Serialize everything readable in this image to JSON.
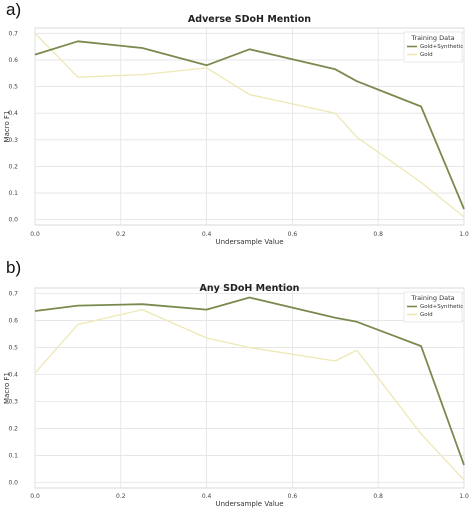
{
  "panels": [
    {
      "label": "a)"
    },
    {
      "label": "b)"
    }
  ],
  "chart_data": [
    {
      "type": "line",
      "title": "Adverse SDoH Mention",
      "xlabel": "Undersample Value",
      "ylabel": "Macro F1",
      "xlim": [
        0.0,
        1.0
      ],
      "ylim": [
        -0.02,
        0.72
      ],
      "xticks": [
        "0.0",
        "0.2",
        "0.4",
        "0.6",
        "0.8",
        "1.0"
      ],
      "yticks": [
        "0.0",
        "0.1",
        "0.2",
        "0.3",
        "0.4",
        "0.5",
        "0.6",
        "0.7"
      ],
      "grid": true,
      "legend": {
        "title": "Training Data",
        "placement": "top-right"
      },
      "x": [
        0.0,
        0.1,
        0.25,
        0.4,
        0.5,
        0.7,
        0.75,
        0.9,
        1.0
      ],
      "series": [
        {
          "name": "Gold+Synthetic",
          "color": "#7a8a4f",
          "values": [
            0.62,
            0.67,
            0.645,
            0.58,
            0.64,
            0.565,
            0.52,
            0.425,
            0.04
          ]
        },
        {
          "name": "Gold",
          "color": "#eee8b4",
          "values": [
            0.7,
            0.535,
            0.545,
            0.57,
            0.47,
            0.4,
            0.31,
            0.14,
            0.01
          ]
        }
      ]
    },
    {
      "type": "line",
      "title": "Any SDoH Mention",
      "xlabel": "Undersample Value",
      "ylabel": "Macro F1",
      "xlim": [
        0.0,
        1.0
      ],
      "ylim": [
        -0.02,
        0.72
      ],
      "xticks": [
        "0.0",
        "0.2",
        "0.4",
        "0.6",
        "0.8",
        "1.0"
      ],
      "yticks": [
        "0.0",
        "0.1",
        "0.2",
        "0.3",
        "0.4",
        "0.5",
        "0.6",
        "0.7"
      ],
      "grid": true,
      "legend": {
        "title": "Training Data",
        "placement": "top-right"
      },
      "x": [
        0.0,
        0.1,
        0.25,
        0.4,
        0.5,
        0.7,
        0.75,
        0.9,
        1.0
      ],
      "series": [
        {
          "name": "Gold+Synthetic",
          "color": "#7a8a4f",
          "values": [
            0.635,
            0.655,
            0.66,
            0.64,
            0.685,
            0.61,
            0.595,
            0.505,
            0.065
          ]
        },
        {
          "name": "Gold",
          "color": "#eee8b4",
          "values": [
            0.405,
            0.585,
            0.64,
            0.535,
            0.5,
            0.45,
            0.49,
            0.18,
            0.01
          ]
        }
      ]
    }
  ]
}
